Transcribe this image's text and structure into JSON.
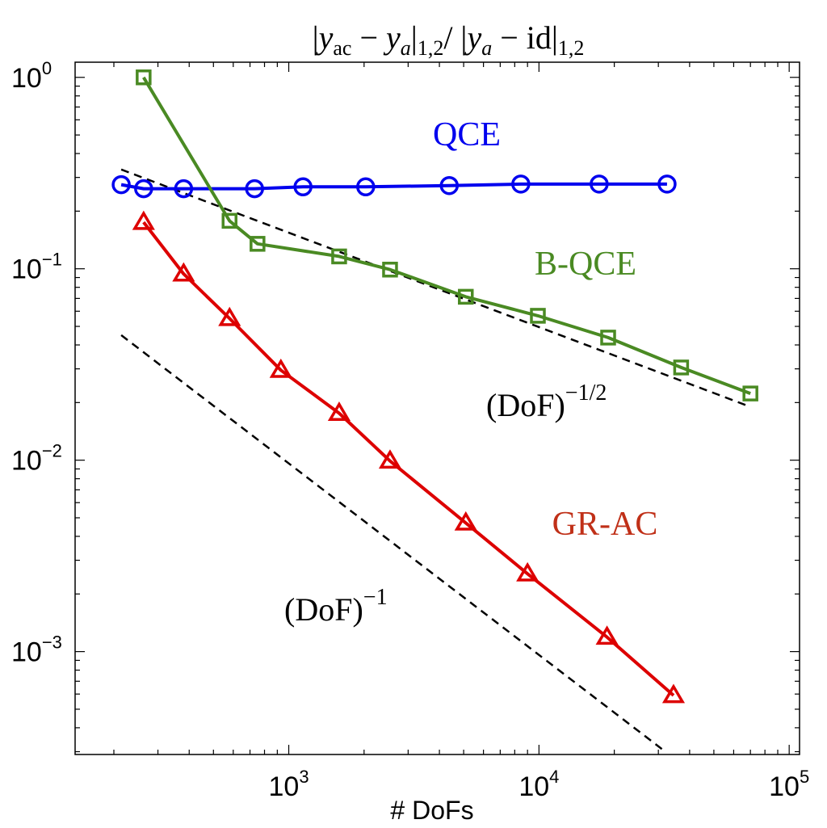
{
  "chart_data": {
    "type": "line",
    "title": "|y_ac − y_a|_{1,2} / |y_a − id|_{1,2}",
    "xlabel": "# DoFs",
    "ylabel": "",
    "xscale": "log",
    "yscale": "log",
    "xlim": [
      140,
      110000
    ],
    "ylim": [
      0.00029,
      1.2
    ],
    "x_ticks": [
      {
        "base": "10",
        "exp": "3",
        "value": 1000
      },
      {
        "base": "10",
        "exp": "4",
        "value": 10000
      },
      {
        "base": "10",
        "exp": "5",
        "value": 100000
      }
    ],
    "y_ticks": [
      {
        "base": "10",
        "exp": "0",
        "value": 1
      },
      {
        "base": "10",
        "exp": "−1",
        "value": 0.1
      },
      {
        "base": "10",
        "exp": "−2",
        "value": 0.01
      },
      {
        "base": "10",
        "exp": "−3",
        "value": 0.001
      }
    ],
    "grid": false,
    "series": [
      {
        "name": "QCE",
        "color": "#0000ee",
        "marker": "circle",
        "x": [
          214,
          263,
          380,
          730,
          1140,
          2030,
          4380,
          8460,
          17400,
          32500
        ],
        "y": [
          0.275,
          0.262,
          0.262,
          0.262,
          0.268,
          0.268,
          0.272,
          0.277,
          0.277,
          0.277
        ]
      },
      {
        "name": "B-QCE",
        "color": "#4a8a23",
        "marker": "square",
        "x": [
          263,
          580,
          750,
          1590,
          2540,
          5100,
          9900,
          18900,
          37000,
          70000
        ],
        "y": [
          1.0,
          0.178,
          0.135,
          0.116,
          0.099,
          0.0714,
          0.0568,
          0.0437,
          0.0305,
          0.0223
        ]
      },
      {
        "name": "GR-AC",
        "color": "#dd0000",
        "marker": "triangle",
        "x": [
          263,
          380,
          580,
          930,
          1590,
          2540,
          5100,
          9000,
          18700,
          34500
        ],
        "y": [
          0.175,
          0.094,
          0.055,
          0.0295,
          0.0176,
          0.0099,
          0.0047,
          0.00255,
          0.00119,
          0.00059
        ]
      }
    ],
    "reference_lines": [
      {
        "label_base": "(DoF)",
        "label_exp": "−1/2",
        "x": [
          214,
          70000
        ],
        "y": [
          0.33,
          0.019
        ]
      },
      {
        "label_base": "(DoF)",
        "label_exp": "−1",
        "x": [
          214,
          32000
        ],
        "y": [
          0.045,
          0.0003
        ]
      }
    ],
    "label_colors": {
      "QCE": "#0000ee",
      "B-QCE": "#4a8a23",
      "GR-AC": "#c03018"
    }
  }
}
